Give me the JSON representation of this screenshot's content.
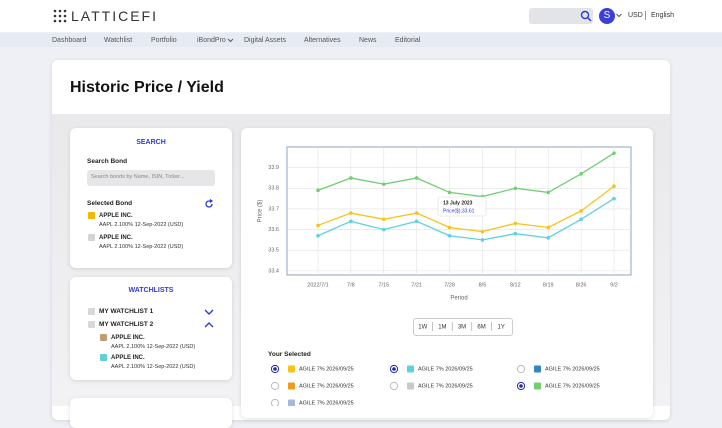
{
  "header": {
    "logo": "LATTICEFI",
    "avatar": "S",
    "currency": "USD",
    "language": "English"
  },
  "nav": [
    "Dashboard",
    "Watchlist",
    "Portfolio",
    "iBondPro",
    "Digital Assets",
    "Alternatives",
    "News",
    "Editorial"
  ],
  "page_title": "Historic Price / Yield",
  "search": {
    "title": "SEARCH",
    "label": "Search Bond",
    "placeholder": "Search bonds by Name, ISIN, Ticker...",
    "selected_title": "Selected Bond",
    "bonds": [
      {
        "name": "APPLE INC.",
        "detail": "AAPL 2.100% 12-Sep-2022 (USD)",
        "color": "#f5b800"
      },
      {
        "name": "APPLE INC.",
        "detail": "AAPL 2.100% 12-Sep-2022 (USD)",
        "color": "#d4d4d4"
      }
    ]
  },
  "watchlists": {
    "title": "WATCHLISTS",
    "lists": [
      {
        "name": "MY WATCHLIST 1",
        "bonds": []
      },
      {
        "name": "MY WATCHLIST 2",
        "bonds": [
          {
            "name": "APPLE INC.",
            "detail": "AAPL 2.100% 12-Sep-2022 (USD)",
            "color": "#c49a72"
          },
          {
            "name": "APPLE INC.",
            "detail": "AAPL 2.100% 12-Sep-2022 (USD)",
            "color": "#5fd0d8"
          }
        ]
      }
    ]
  },
  "chart_data": {
    "type": "line",
    "y_label": "Price ($)",
    "x_label": "Period",
    "categories": [
      "2022/7/1",
      "7/8",
      "7/15",
      "7/21",
      "7/28",
      "8/5",
      "8/12",
      "8/19",
      "8/26",
      "9/2"
    ],
    "series": [
      {
        "color": "#72cf72",
        "values": [
          33.79,
          33.85,
          33.82,
          33.85,
          33.78,
          33.76,
          33.8,
          33.78,
          33.87,
          33.97
        ]
      },
      {
        "color": "#f7c21a",
        "values": [
          33.62,
          33.68,
          33.65,
          33.68,
          33.61,
          33.59,
          33.63,
          33.61,
          33.69,
          33.81
        ]
      },
      {
        "color": "#5fd0e0",
        "values": [
          33.57,
          33.64,
          33.6,
          33.64,
          33.57,
          33.55,
          33.58,
          33.56,
          33.65,
          33.75
        ]
      }
    ],
    "ylim": [
      33.38,
      34.0
    ],
    "yticks": [
      33.4,
      33.5,
      33.6,
      33.7,
      33.8,
      33.9
    ],
    "grid": true,
    "tooltip": {
      "title": "13 July 2023",
      "text": "Price($):33.61"
    }
  },
  "ranges": [
    "1W",
    "1M",
    "3M",
    "6M",
    "1Y"
  ],
  "selected": {
    "title": "Your Selected",
    "items": [
      {
        "label": "AGILE 7% 2026/09/25",
        "color": "#f7c21a",
        "checked": true
      },
      {
        "label": "AGILE 7% 2026/09/25",
        "color": "#5fd0e0",
        "checked": true
      },
      {
        "label": "AGILE 7% 2026/09/25",
        "color": "#2f86c4",
        "checked": false
      },
      {
        "label": "AGILE 7% 2026/09/25",
        "color": "#f29a1e",
        "checked": false
      },
      {
        "label": "AGILE 7% 2026/09/25",
        "color": "#c9c9c9",
        "checked": false
      },
      {
        "label": "AGILE 7% 2026/09/25",
        "color": "#72cf72",
        "checked": true
      },
      {
        "label": "AGILE 7% 2026/09/25",
        "color": "#a9b7e0",
        "checked": false
      }
    ]
  }
}
